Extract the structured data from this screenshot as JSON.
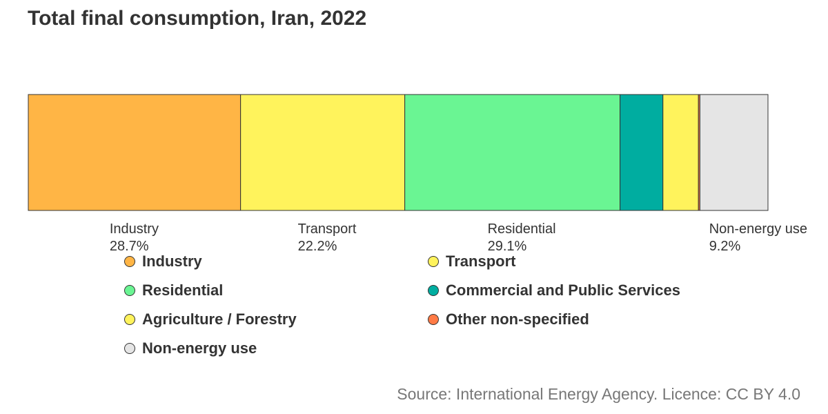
{
  "chart_data": {
    "type": "bar",
    "title": "Total final consumption, Iran, 2022",
    "orientation": "horizontal-stacked-100",
    "series": [
      {
        "name": "Industry",
        "value": 28.7,
        "color": "#FFB545",
        "label": "Industry",
        "label_value": "28.7%"
      },
      {
        "name": "Transport",
        "value": 22.2,
        "color": "#FFF35C",
        "label": "Transport",
        "label_value": "22.2%"
      },
      {
        "name": "Residential",
        "value": 29.1,
        "color": "#6AF593",
        "label": "Residential",
        "label_value": "29.1%"
      },
      {
        "name": "Commercial and Public Services",
        "value": 5.8,
        "color": "#00ADA0",
        "label": "",
        "label_value": ""
      },
      {
        "name": "Agriculture / Forestry",
        "value": 4.8,
        "color": "#FFF35C",
        "label": "",
        "label_value": ""
      },
      {
        "name": "Other non-specified",
        "value": 0.2,
        "color": "#FF7A45",
        "label": "",
        "label_value": ""
      },
      {
        "name": "Non-energy use",
        "value": 9.2,
        "color": "#E5E5E5",
        "label": "Non-energy use",
        "label_value": "9.2%"
      }
    ],
    "legend": {
      "placement": "bottom",
      "columns": 2,
      "items": [
        {
          "name": "Industry",
          "color": "#FFB545"
        },
        {
          "name": "Transport",
          "color": "#FFF35C"
        },
        {
          "name": "Residential",
          "color": "#6AF593"
        },
        {
          "name": "Commercial and Public Services",
          "color": "#00ADA0"
        },
        {
          "name": "Agriculture / Forestry",
          "color": "#FFF35C"
        },
        {
          "name": "Other non-specified",
          "color": "#FF7A45"
        },
        {
          "name": "Non-energy use",
          "color": "#E5E5E5"
        }
      ]
    }
  },
  "source": "Source: International Energy Agency. Licence: CC BY 4.0"
}
